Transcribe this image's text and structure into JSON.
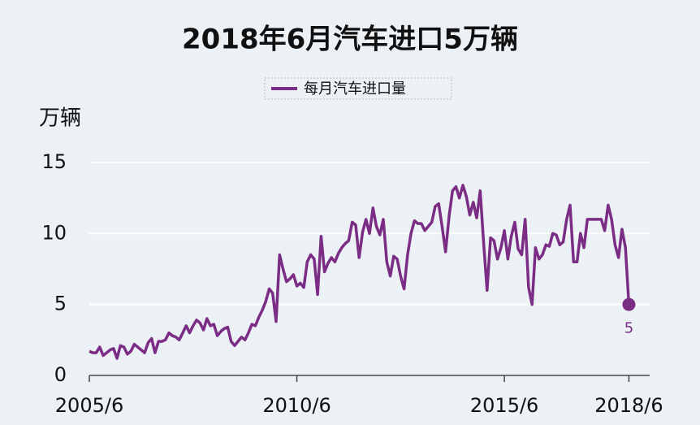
{
  "chart_data": {
    "type": "line",
    "title": "2018年6月汽车进口5万辆",
    "y_label": "万辆",
    "x": [
      "2005/6",
      "2005/7",
      "2005/8",
      "2005/9",
      "2005/10",
      "2005/11",
      "2005/12",
      "2006/1",
      "2006/2",
      "2006/3",
      "2006/4",
      "2006/5",
      "2006/6",
      "2006/7",
      "2006/8",
      "2006/9",
      "2006/10",
      "2006/11",
      "2006/12",
      "2007/1",
      "2007/2",
      "2007/3",
      "2007/4",
      "2007/5",
      "2007/6",
      "2007/7",
      "2007/8",
      "2007/9",
      "2007/10",
      "2007/11",
      "2007/12",
      "2008/1",
      "2008/2",
      "2008/3",
      "2008/4",
      "2008/5",
      "2008/6",
      "2008/7",
      "2008/8",
      "2008/9",
      "2008/10",
      "2008/11",
      "2008/12",
      "2009/1",
      "2009/2",
      "2009/3",
      "2009/4",
      "2009/5",
      "2009/6",
      "2009/7",
      "2009/8",
      "2009/9",
      "2009/10",
      "2009/11",
      "2009/12",
      "2010/1",
      "2010/2",
      "2010/3",
      "2010/4",
      "2010/5",
      "2010/6",
      "2010/7",
      "2010/8",
      "2010/9",
      "2010/10",
      "2010/11",
      "2010/12",
      "2011/1",
      "2011/2",
      "2011/3",
      "2011/4",
      "2011/5",
      "2011/6",
      "2011/7",
      "2011/8",
      "2011/9",
      "2011/10",
      "2011/11",
      "2011/12",
      "2012/1",
      "2012/2",
      "2012/3",
      "2012/4",
      "2012/5",
      "2012/6",
      "2012/7",
      "2012/8",
      "2012/9",
      "2012/10",
      "2012/11",
      "2012/12",
      "2013/1",
      "2013/2",
      "2013/3",
      "2013/4",
      "2013/5",
      "2013/6",
      "2013/7",
      "2013/8",
      "2013/9",
      "2013/10",
      "2013/11",
      "2013/12",
      "2014/1",
      "2014/2",
      "2014/3",
      "2014/4",
      "2014/5",
      "2014/6",
      "2014/7",
      "2014/8",
      "2014/9",
      "2014/10",
      "2014/11",
      "2014/12",
      "2015/1",
      "2015/2",
      "2015/3",
      "2015/4",
      "2015/5",
      "2015/6",
      "2015/7",
      "2015/8",
      "2015/9",
      "2015/10",
      "2015/11",
      "2015/12",
      "2016/1",
      "2016/2",
      "2016/3",
      "2016/4",
      "2016/5",
      "2016/6",
      "2016/7",
      "2016/8",
      "2016/9",
      "2016/10",
      "2016/11",
      "2016/12",
      "2017/1",
      "2017/2",
      "2017/3",
      "2017/4",
      "2017/5",
      "2017/6",
      "2017/7",
      "2017/8",
      "2017/9",
      "2017/10",
      "2017/11",
      "2017/12",
      "2018/1",
      "2018/2",
      "2018/3",
      "2018/4",
      "2018/5",
      "2018/6"
    ],
    "series": [
      {
        "name": "每月汽车进口量",
        "color": "#7b2d86",
        "values": [
          1.7,
          1.6,
          1.6,
          2.0,
          1.4,
          1.6,
          1.8,
          1.9,
          1.2,
          2.1,
          2.0,
          1.5,
          1.7,
          2.2,
          2.0,
          1.8,
          1.6,
          2.3,
          2.6,
          1.6,
          2.4,
          2.4,
          2.5,
          3.0,
          2.8,
          2.7,
          2.5,
          3.0,
          3.5,
          3.0,
          3.5,
          3.9,
          3.7,
          3.2,
          4.0,
          3.5,
          3.6,
          2.8,
          3.1,
          3.3,
          3.4,
          2.4,
          2.1,
          2.4,
          2.7,
          2.5,
          3.0,
          3.6,
          3.5,
          4.1,
          4.6,
          5.2,
          6.1,
          5.8,
          3.8,
          8.5,
          7.5,
          6.6,
          6.8,
          7.1,
          6.3,
          6.5,
          6.2,
          8.0,
          8.5,
          8.2,
          5.7,
          9.8,
          7.3,
          7.9,
          8.3,
          8.0,
          8.6,
          9.0,
          9.3,
          9.5,
          10.8,
          10.6,
          8.3,
          10.1,
          11.0,
          10.0,
          11.8,
          10.5,
          9.9,
          11.0,
          8.0,
          7.0,
          8.4,
          8.2,
          7.0,
          6.1,
          8.5,
          10.0,
          10.9,
          10.7,
          10.7,
          10.2,
          10.5,
          10.8,
          11.9,
          12.1,
          10.5,
          8.7,
          11.2,
          13.0,
          13.3,
          12.5,
          13.4,
          12.6,
          11.3,
          12.2,
          11.1,
          13.0,
          9.3,
          6.0,
          9.7,
          9.5,
          8.2,
          9.0,
          10.2,
          8.2,
          9.8,
          10.8,
          8.9,
          8.5,
          11.0,
          6.2,
          5.0,
          9.0,
          8.2,
          8.5,
          9.2,
          9.1,
          10.0,
          9.9,
          9.2,
          9.4,
          11.0,
          12.0,
          8.0,
          8.0,
          10.0,
          9.0,
          11.0,
          11.0,
          11.0,
          11.0,
          11.0,
          10.2,
          12.0,
          11.0,
          9.2,
          8.3,
          10.3,
          9.0,
          5
        ]
      }
    ],
    "xlim": [
      "2005/6",
      "2018/12"
    ],
    "xticks": [
      "2005/6",
      "2010/6",
      "2015/6",
      "2018/6"
    ],
    "ylim": [
      0,
      15
    ],
    "yticks": [
      0,
      5,
      10,
      15
    ],
    "grid": true,
    "legend": "top"
  }
}
